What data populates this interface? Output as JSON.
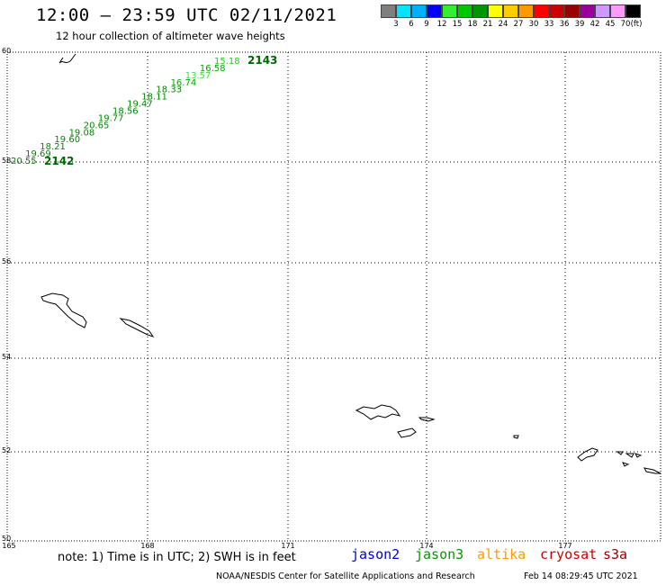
{
  "header": {
    "title": "12:00 – 23:59 UTC 02/11/2021",
    "subtitle": "12 hour collection of altimeter wave heights"
  },
  "color_scale": {
    "colors": [
      "#7f7f7f",
      "#00e5ff",
      "#00b0ff",
      "#0000ff",
      "#33ee33",
      "#00c800",
      "#009600",
      "#ffff00",
      "#ffcc00",
      "#ff9900",
      "#ff0000",
      "#cc0000",
      "#990000",
      "#990099",
      "#cc99ff",
      "#ff99ff",
      "#000000"
    ],
    "ticks": [
      "3",
      "6",
      "9",
      "12",
      "15",
      "18",
      "21",
      "24",
      "27",
      "30",
      "33",
      "36",
      "39",
      "42",
      "45",
      "70",
      "(ft)"
    ]
  },
  "map": {
    "lat_labels": [
      "60",
      "58",
      "56",
      "54",
      "52",
      "50"
    ],
    "lon_labels": [
      "165",
      "168",
      "171",
      "174",
      "177"
    ],
    "track": {
      "start_label": "2142",
      "end_label": "2143",
      "values": [
        {
          "text": "20.55",
          "color": "#008800"
        },
        {
          "text": "19.69",
          "color": "#008800"
        },
        {
          "text": "18.21",
          "color": "#008800"
        },
        {
          "text": "19.60",
          "color": "#008800"
        },
        {
          "text": "19.08",
          "color": "#008800"
        },
        {
          "text": "20.65",
          "color": "#008800"
        },
        {
          "text": "19.77",
          "color": "#008800"
        },
        {
          "text": "18.56",
          "color": "#008800"
        },
        {
          "text": "19.47",
          "color": "#008800"
        },
        {
          "text": "18.11",
          "color": "#008800"
        },
        {
          "text": "18.33",
          "color": "#008800"
        },
        {
          "text": "16.74",
          "color": "#00a800"
        },
        {
          "text": "13.57",
          "color": "#44dd44"
        },
        {
          "text": "16.58",
          "color": "#00a800"
        },
        {
          "text": "15.18",
          "color": "#22cc22"
        }
      ]
    }
  },
  "footer": {
    "note": "note: 1) Time is in UTC; 2) SWH is in feet",
    "satellites": [
      {
        "name": "jason2",
        "color": "#0000dd"
      },
      {
        "name": "jason3",
        "color": "#009900"
      },
      {
        "name": "altika",
        "color": "#ff9900"
      },
      {
        "name": "cryosat",
        "color": "#cc0000"
      },
      {
        "name": "s3a",
        "color": "#990000"
      }
    ],
    "credit": "NOAA/NESDIS Center for Satellite Applications and Research",
    "generated": "Feb 14 08:29:45 UTC 2021"
  }
}
